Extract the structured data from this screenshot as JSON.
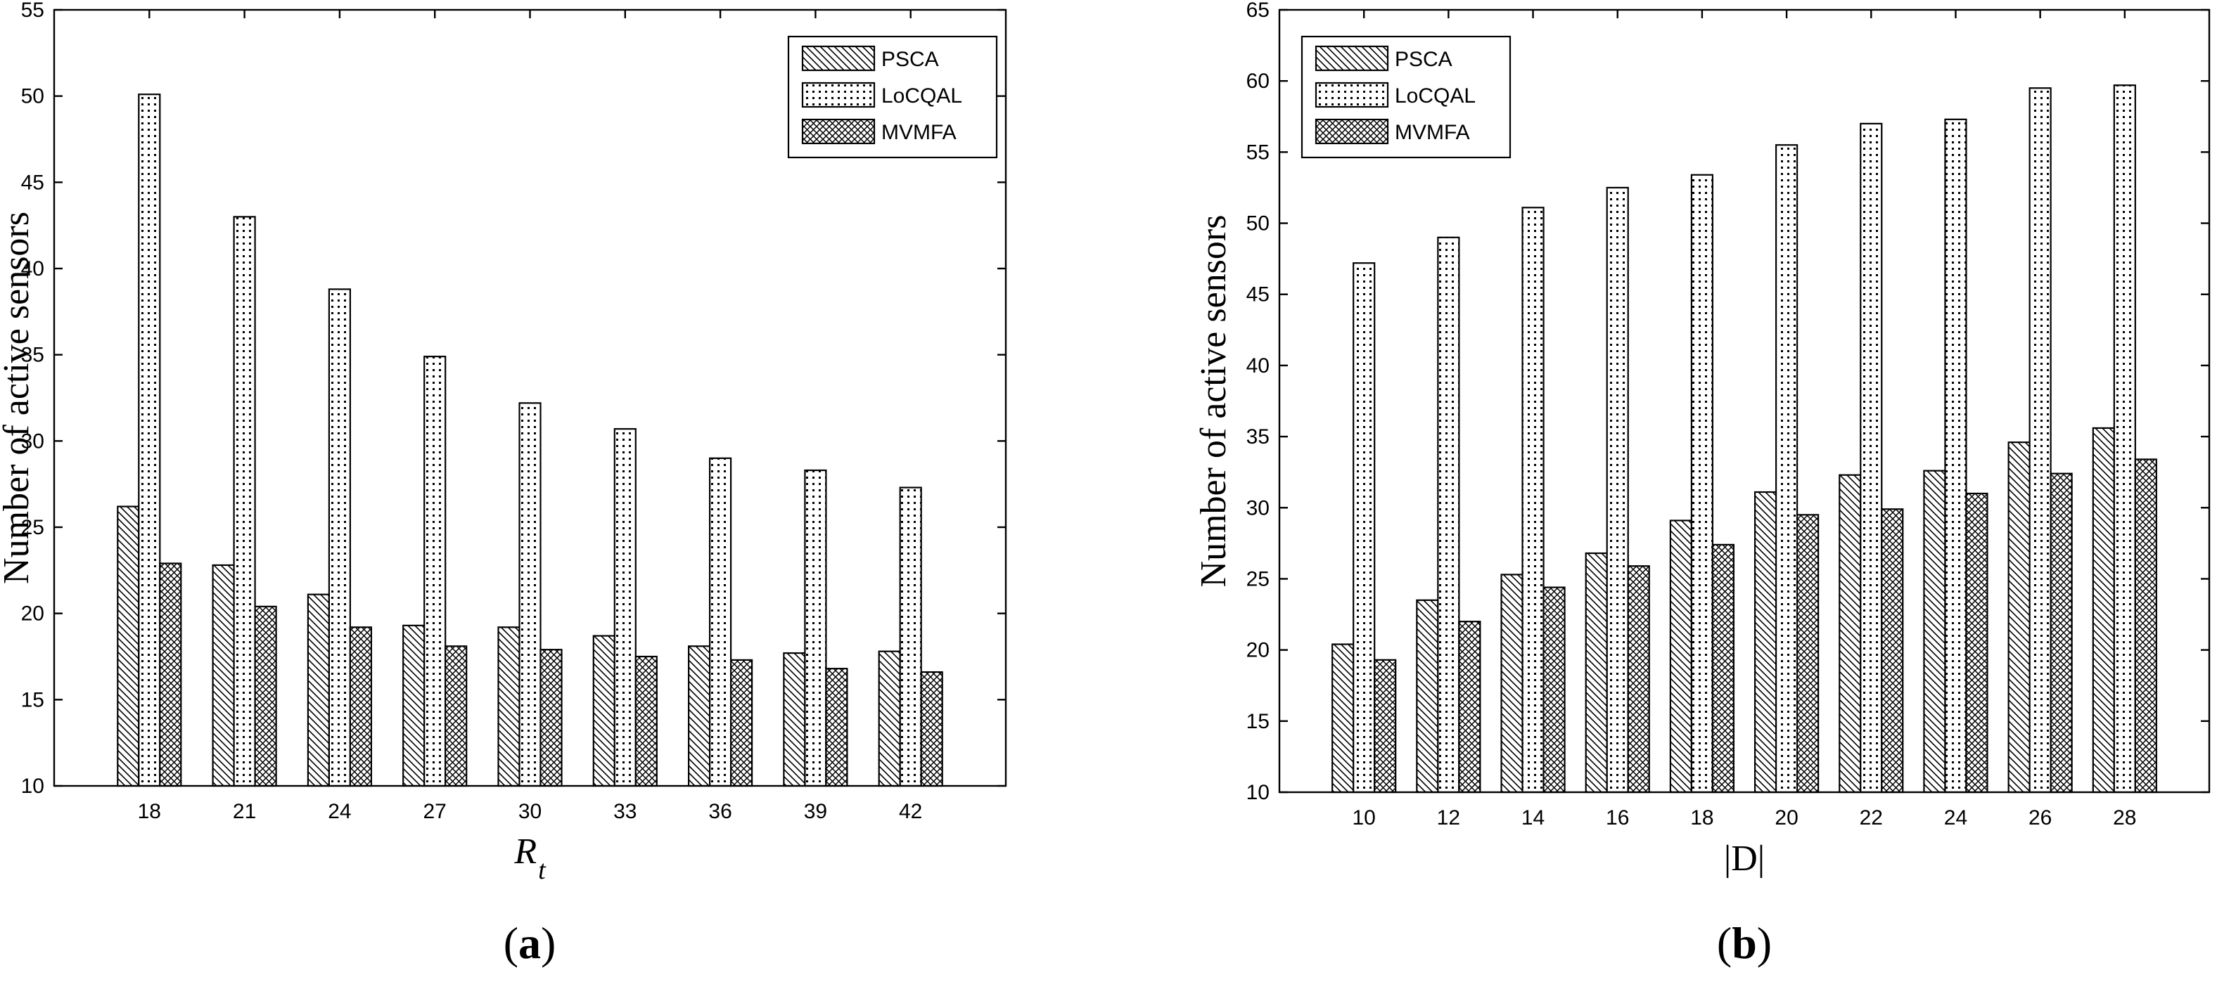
{
  "chart_data": [
    {
      "type": "bar",
      "panel": "a",
      "caption_letter": "a",
      "xlabel_main": "R",
      "xlabel_sub": "t",
      "ylabel": "Number of active sensors",
      "ylim": [
        10,
        55
      ],
      "yticks": [
        10,
        15,
        20,
        25,
        30,
        35,
        40,
        45,
        50,
        55
      ],
      "categories": [
        "18",
        "21",
        "24",
        "27",
        "30",
        "33",
        "36",
        "39",
        "42"
      ],
      "legend_position": "top-right",
      "series": [
        {
          "name": "PSCA",
          "pattern": "diag",
          "values": [
            26.2,
            22.8,
            21.1,
            19.3,
            19.2,
            18.7,
            18.1,
            17.7,
            17.8
          ]
        },
        {
          "name": "LoCQAL",
          "pattern": "dots",
          "values": [
            50.1,
            43.0,
            38.8,
            34.9,
            32.2,
            30.7,
            29.0,
            28.3,
            27.3
          ]
        },
        {
          "name": "MVMFA",
          "pattern": "cross",
          "values": [
            22.9,
            20.4,
            19.2,
            18.1,
            17.9,
            17.5,
            17.3,
            16.8,
            16.6
          ]
        }
      ]
    },
    {
      "type": "bar",
      "panel": "b",
      "caption_letter": "b",
      "xlabel_main": "|D|",
      "xlabel_sub": "",
      "ylabel": "Number of active sensors",
      "ylim": [
        10,
        65
      ],
      "yticks": [
        10,
        15,
        20,
        25,
        30,
        35,
        40,
        45,
        50,
        55,
        60,
        65
      ],
      "categories": [
        "10",
        "12",
        "14",
        "16",
        "18",
        "20",
        "22",
        "24",
        "26",
        "28"
      ],
      "legend_position": "top-left",
      "series": [
        {
          "name": "PSCA",
          "pattern": "diag",
          "values": [
            20.4,
            23.5,
            25.3,
            26.8,
            29.1,
            31.1,
            32.3,
            32.6,
            34.6,
            35.6
          ]
        },
        {
          "name": "LoCQAL",
          "pattern": "dots",
          "values": [
            47.2,
            49.0,
            51.1,
            52.5,
            53.4,
            55.5,
            57.0,
            57.3,
            59.5,
            59.7
          ]
        },
        {
          "name": "MVMFA",
          "pattern": "cross",
          "values": [
            19.3,
            22.0,
            24.4,
            25.9,
            27.4,
            29.5,
            29.9,
            31.0,
            32.4,
            33.4
          ]
        }
      ]
    }
  ]
}
